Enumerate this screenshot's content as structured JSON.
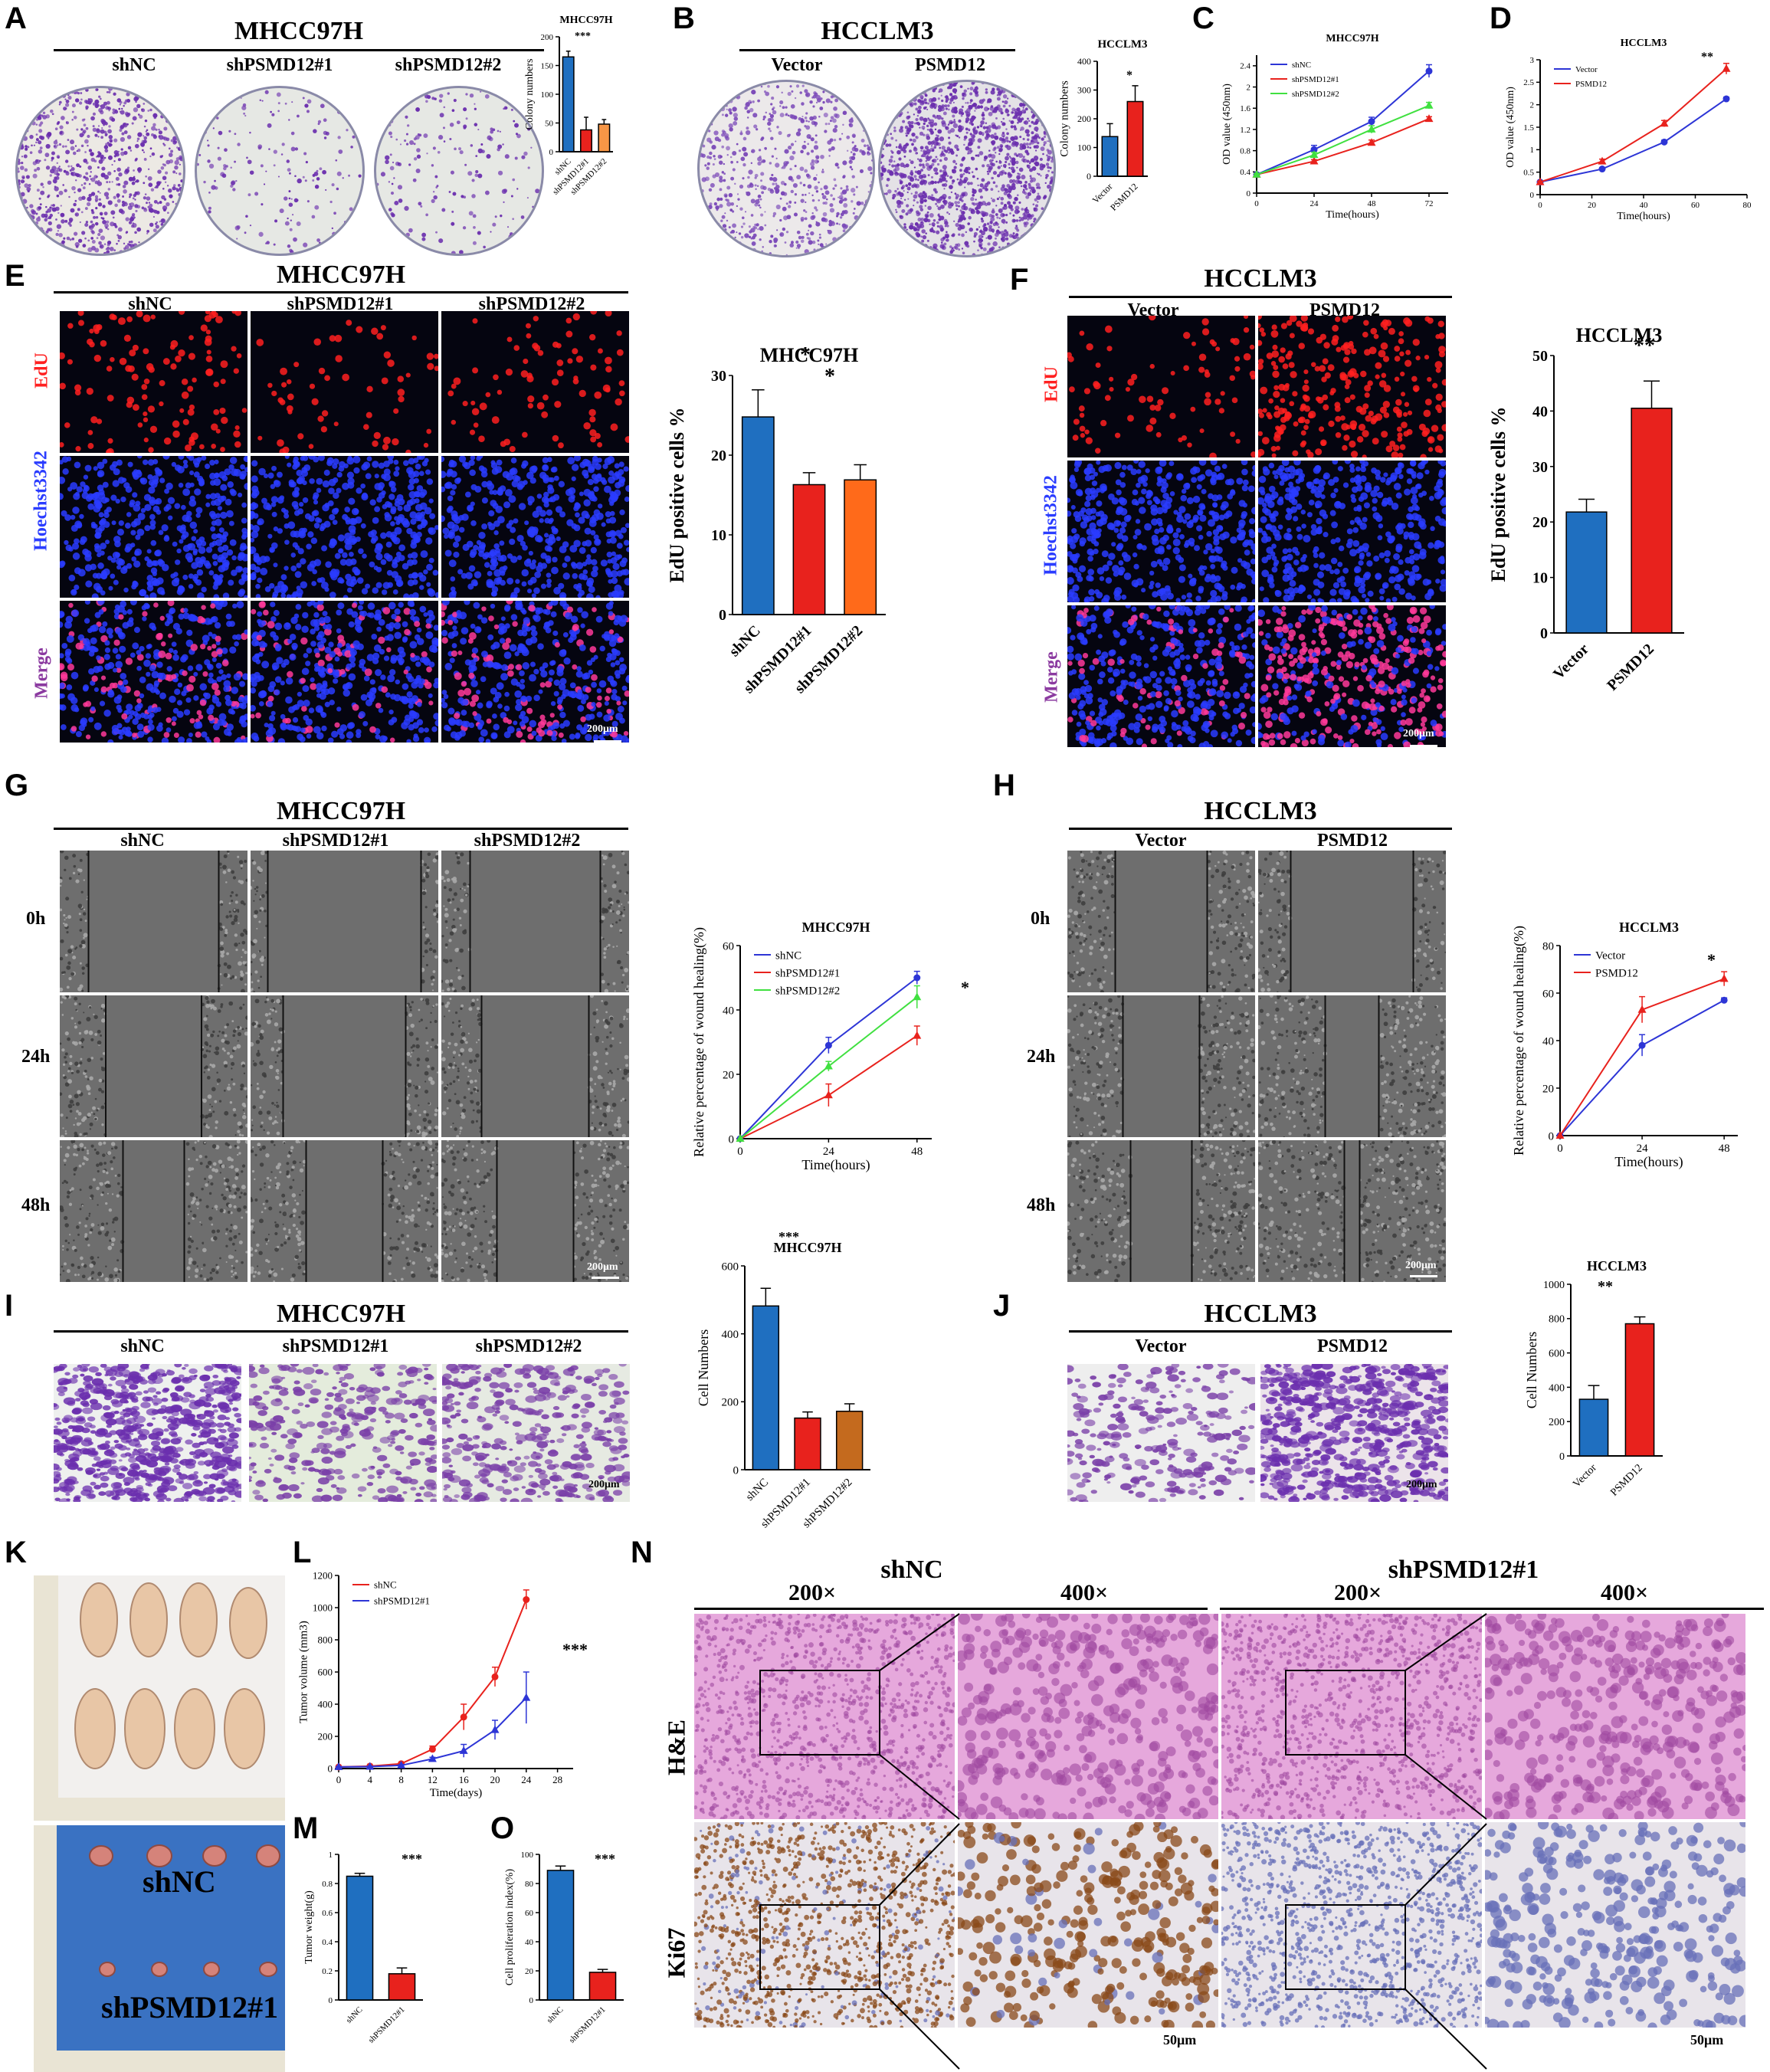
{
  "panel_letters": {
    "A": "A",
    "B": "B",
    "C": "C",
    "D": "D",
    "E": "E",
    "F": "F",
    "G": "G",
    "H": "H",
    "I": "I",
    "J": "J",
    "K": "K",
    "L": "L",
    "M": "M",
    "N": "N",
    "O": "O"
  },
  "groups": {
    "shNC": "shNC",
    "sh1": "shPSMD12#1",
    "sh2": "shPSMD12#2",
    "vector": "Vector",
    "psmd12": "PSMD12"
  },
  "cells": {
    "mhcc": "MHCC97H",
    "hcclm": "HCCLM3"
  },
  "rows": {
    "edu": "EdU",
    "hoechst": "Hoechst3342",
    "merge": "Merge",
    "h0": "0h",
    "h24": "24h",
    "h48": "48h",
    "he": "H&E",
    "ki67": "Ki67"
  },
  "mag": {
    "m200": "200×",
    "m400": "400×"
  },
  "scale": {
    "s200": "200μm",
    "s50": "50μm"
  },
  "sig": {
    "one": "*",
    "two": "**",
    "three": "***"
  },
  "colors": {
    "blue": "#1f6fc0",
    "red": "#e8221d",
    "orange": "#f79646",
    "brown": "#c46a1e",
    "line_blue": "#2d35d6",
    "line_red": "#e8221d",
    "line_green": "#40e040",
    "crystal": "#6b2fae",
    "edu": "#ff2020",
    "hoechst": "#2a3cff",
    "he": "#d88ad0",
    "ki67_brown": "#8a4a1a",
    "ki67_blue": "#6870b8"
  },
  "chart_data": [
    {
      "id": "A",
      "type": "bar",
      "title": "MHCC97H",
      "ylabel": "Colony numbers",
      "categories": [
        "shNC",
        "shPSMD12#1",
        "shPSMD12#2"
      ],
      "values": [
        165,
        38,
        48
      ],
      "errors": [
        10,
        22,
        8
      ],
      "ylim": [
        0,
        200
      ],
      "yticks": [
        0,
        50,
        100,
        150,
        200
      ],
      "colors": [
        "#1f6fc0",
        "#e8221d",
        "#f79646"
      ]
    },
    {
      "id": "B",
      "type": "bar",
      "title": "HCCLM3",
      "ylabel": "Colony numbers",
      "categories": [
        "Vector",
        "PSMD12"
      ],
      "values": [
        138,
        260
      ],
      "errors": [
        45,
        55
      ],
      "ylim": [
        0,
        400
      ],
      "yticks": [
        0,
        100,
        200,
        300,
        400
      ],
      "colors": [
        "#1f6fc0",
        "#e8221d"
      ]
    },
    {
      "id": "C",
      "type": "line",
      "title": "MHCC97H",
      "ylabel": "OD value (450nm)",
      "xlabel": "Time(hours)",
      "x": [
        0,
        24,
        48,
        72
      ],
      "xlim": [
        0,
        80
      ],
      "xticks": [
        0,
        24,
        48,
        72
      ],
      "ylim": [
        0,
        2.6
      ],
      "yticks": [
        0,
        0.4,
        0.8,
        1.2,
        1.6,
        2.0,
        2.4
      ],
      "series": [
        {
          "name": "shNC",
          "values": [
            0.35,
            0.82,
            1.35,
            2.3
          ],
          "errors": [
            0.03,
            0.08,
            0.08,
            0.12
          ],
          "color": "#2d35d6"
        },
        {
          "name": "shPSMD12#1",
          "values": [
            0.35,
            0.6,
            0.95,
            1.4
          ],
          "errors": [
            0.02,
            0.03,
            0.05,
            0.04
          ],
          "color": "#e8221d"
        },
        {
          "name": "shPSMD12#2",
          "values": [
            0.35,
            0.72,
            1.2,
            1.65
          ],
          "errors": [
            0.02,
            0.05,
            0.07,
            0.06
          ],
          "color": "#40e040"
        }
      ],
      "legend": "top-left"
    },
    {
      "id": "D",
      "type": "line",
      "title": "HCCLM3",
      "ylabel": "OD value (450nm)",
      "xlabel": "Time(hours)",
      "x": [
        0,
        24,
        48,
        72
      ],
      "xlim": [
        0,
        80
      ],
      "xticks": [
        0,
        20,
        40,
        60,
        80
      ],
      "ylim": [
        0,
        3.0
      ],
      "yticks": [
        0,
        0.5,
        1.0,
        1.5,
        2.0,
        2.5,
        3.0
      ],
      "series": [
        {
          "name": "Vector",
          "values": [
            0.28,
            0.57,
            1.17,
            2.13
          ],
          "errors": [
            0.02,
            0.03,
            0.04,
            0.04
          ],
          "color": "#2d35d6"
        },
        {
          "name": "PSMD12",
          "values": [
            0.28,
            0.74,
            1.58,
            2.8
          ],
          "errors": [
            0.02,
            0.05,
            0.07,
            0.12
          ],
          "color": "#e8221d"
        }
      ],
      "legend": "top-left"
    },
    {
      "id": "E",
      "type": "bar",
      "title": "MHCC97H",
      "ylabel": "EdU positive cells %",
      "categories": [
        "shNC",
        "shPSMD12#1",
        "shPSMD12#2"
      ],
      "values": [
        24.8,
        16.3,
        16.9
      ],
      "errors": [
        3.4,
        1.5,
        1.9
      ],
      "ylim": [
        0,
        30
      ],
      "yticks": [
        0,
        10,
        20,
        30
      ],
      "colors": [
        "#1f6fc0",
        "#e8221d",
        "#ff6a1a"
      ]
    },
    {
      "id": "F",
      "type": "bar",
      "title": "HCCLM3",
      "ylabel": "EdU positive cells %",
      "categories": [
        "Vector",
        "PSMD12"
      ],
      "values": [
        21.8,
        40.5
      ],
      "errors": [
        2.3,
        4.9
      ],
      "ylim": [
        0,
        50
      ],
      "yticks": [
        0,
        10,
        20,
        30,
        40,
        50
      ],
      "colors": [
        "#1f6fc0",
        "#e8221d"
      ]
    },
    {
      "id": "G",
      "type": "line",
      "title": "MHCC97H",
      "ylabel": "Relative percentage of wound healing(%)",
      "xlabel": "Time(hours)",
      "x": [
        0,
        24,
        48
      ],
      "xlim": [
        0,
        52
      ],
      "xticks": [
        0,
        24,
        48
      ],
      "ylim": [
        0,
        60
      ],
      "yticks": [
        0,
        20,
        40,
        60
      ],
      "series": [
        {
          "name": "shNC",
          "values": [
            0,
            29,
            50
          ],
          "errors": [
            0,
            2.5,
            2
          ],
          "color": "#2d35d6"
        },
        {
          "name": "shPSMD12#1",
          "values": [
            0,
            13.5,
            32
          ],
          "errors": [
            0,
            3.5,
            3
          ],
          "color": "#e8221d"
        },
        {
          "name": "shPSMD12#2",
          "values": [
            0,
            22.5,
            44
          ],
          "errors": [
            0,
            1.5,
            3.5
          ],
          "color": "#40e040"
        }
      ],
      "legend": "top-left"
    },
    {
      "id": "H",
      "type": "line",
      "title": "HCCLM3",
      "ylabel": "Relative percentage of wound healing(%)",
      "xlabel": "Time(hours)",
      "x": [
        0,
        24,
        48
      ],
      "xlim": [
        0,
        52
      ],
      "xticks": [
        0,
        24,
        48
      ],
      "ylim": [
        0,
        80
      ],
      "yticks": [
        0,
        20,
        40,
        60,
        80
      ],
      "series": [
        {
          "name": "Vector",
          "values": [
            0,
            38,
            57
          ],
          "errors": [
            0,
            4.5,
            1
          ],
          "color": "#2d35d6"
        },
        {
          "name": "PSMD12",
          "values": [
            0,
            53,
            66
          ],
          "errors": [
            0,
            5.5,
            3
          ],
          "color": "#e8221d"
        }
      ],
      "legend": "top-left"
    },
    {
      "id": "I",
      "type": "bar",
      "title": "MHCC97H",
      "ylabel": "Cell Numbers",
      "categories": [
        "shNC",
        "shPSMD12#1",
        "shPSMD12#2"
      ],
      "values": [
        482,
        152,
        172
      ],
      "errors": [
        52,
        18,
        22
      ],
      "ylim": [
        0,
        600
      ],
      "yticks": [
        0,
        200,
        400,
        600
      ],
      "colors": [
        "#1f6fc0",
        "#e8221d",
        "#c46a1e"
      ]
    },
    {
      "id": "J",
      "type": "bar",
      "title": "HCCLM3",
      "ylabel": "Cell Numbers",
      "categories": [
        "Vector",
        "PSMD12"
      ],
      "values": [
        330,
        770
      ],
      "errors": [
        80,
        40
      ],
      "ylim": [
        0,
        1000
      ],
      "yticks": [
        0,
        200,
        400,
        600,
        800,
        1000
      ],
      "colors": [
        "#1f6fc0",
        "#e8221d"
      ]
    },
    {
      "id": "L",
      "type": "line",
      "title": "",
      "ylabel": "Tumor volume (mm3)",
      "xlabel": "Time(days)",
      "x": [
        0,
        4,
        8,
        12,
        16,
        20,
        24
      ],
      "xlim": [
        0,
        30
      ],
      "xticks": [
        0,
        4,
        8,
        12,
        16,
        20,
        24,
        28
      ],
      "ylim": [
        0,
        1200
      ],
      "yticks": [
        0,
        200,
        400,
        600,
        800,
        1000,
        1200
      ],
      "series": [
        {
          "name": "shNC",
          "values": [
            10,
            15,
            30,
            120,
            320,
            570,
            1050
          ],
          "errors": [
            2,
            3,
            5,
            20,
            80,
            60,
            60
          ],
          "color": "#e8221d"
        },
        {
          "name": "shPSMD12#1",
          "values": [
            10,
            12,
            20,
            60,
            110,
            240,
            440
          ],
          "errors": [
            2,
            2,
            4,
            10,
            40,
            60,
            160
          ],
          "color": "#2d35d6"
        }
      ],
      "legend": "top-left"
    },
    {
      "id": "M",
      "type": "bar",
      "title": "",
      "ylabel": "Tumor weight(g)",
      "categories": [
        "shNC",
        "shPSMD12#1"
      ],
      "values": [
        0.85,
        0.18
      ],
      "errors": [
        0.02,
        0.04
      ],
      "ylim": [
        0,
        1.0
      ],
      "yticks": [
        0,
        0.2,
        0.4,
        0.6,
        0.8,
        1.0
      ],
      "colors": [
        "#1f6fc0",
        "#e8221d"
      ]
    },
    {
      "id": "O",
      "type": "bar",
      "title": "",
      "ylabel": "Cell proliferation index(%)",
      "categories": [
        "shNC",
        "shPSMD12#1"
      ],
      "values": [
        89,
        19
      ],
      "errors": [
        3,
        2
      ],
      "ylim": [
        0,
        100
      ],
      "yticks": [
        0,
        20,
        40,
        60,
        80,
        100
      ],
      "colors": [
        "#1f6fc0",
        "#e8221d"
      ]
    }
  ]
}
